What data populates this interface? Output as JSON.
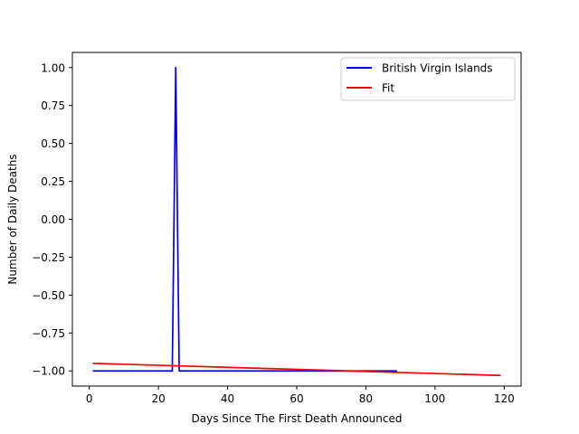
{
  "chart_data": {
    "type": "line",
    "title": "",
    "xlabel": "Days Since The First Death Announced",
    "ylabel": "Number of Daily Deaths",
    "xlim": [
      -4.9,
      124.9
    ],
    "ylim": [
      -1.1,
      1.1
    ],
    "xticks": [
      0,
      20,
      40,
      60,
      80,
      100,
      120
    ],
    "yticks": [
      -1.0,
      -0.75,
      -0.5,
      -0.25,
      0.0,
      0.25,
      0.5,
      0.75,
      1.0
    ],
    "xtick_labels": [
      "0",
      "20",
      "40",
      "60",
      "80",
      "100",
      "120"
    ],
    "ytick_labels": [
      "−1.00",
      "−0.75",
      "−0.50",
      "−0.25",
      "0.00",
      "0.25",
      "0.50",
      "0.75",
      "1.00"
    ],
    "grid": false,
    "legend_position": "top-right",
    "series": [
      {
        "name": "British Virgin Islands",
        "color": "#0000ff",
        "points": [
          [
            1,
            -1
          ],
          [
            24,
            -1
          ],
          [
            25,
            1
          ],
          [
            26,
            -1
          ],
          [
            89,
            -1
          ]
        ]
      },
      {
        "name": "Fit",
        "color": "#ff0000",
        "points": [
          [
            1,
            -0.95
          ],
          [
            119,
            -1.03
          ]
        ]
      }
    ]
  }
}
